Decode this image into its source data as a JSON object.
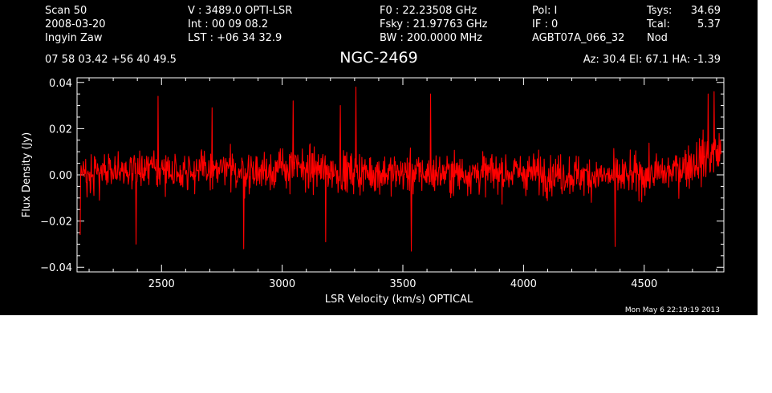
{
  "header": {
    "col1": [
      "Scan          50",
      "2008-03-20",
      "Ingyin Zaw"
    ],
    "col2": [
      "V    :     3489.0 OPTI-LSR",
      "Int   :   00 09 08.2",
      "LST : +06 34 32.9"
    ],
    "col3": [
      "F0    :   22.23508 GHz",
      "Fsky :   21.97763 GHz",
      "BW    : 200.0000 MHz"
    ],
    "col4": [
      "Pol:      I",
      "IF  :      0",
      "AGBT07A_066_32"
    ],
    "col5_labels": [
      "Tsys:",
      "Tcal:",
      "Nod"
    ],
    "col5_values": [
      "34.69",
      "5.37",
      ""
    ],
    "coords": "07 58 03.42  +56 40 49.5",
    "source": "NGC-2469",
    "pointing": "Az:  30.4   El:  67.1   HA: -1.39",
    "timestamp": "Mon May  6 22:19:19 2013"
  },
  "chart_data": {
    "type": "line",
    "title": "NGC-2469",
    "xlabel": "LSR Velocity (km/s) OPTICAL",
    "ylabel": "Flux Density (Jy)",
    "xlim": [
      2150,
      4830
    ],
    "ylim": [
      -0.042,
      0.042
    ],
    "xticks": [
      2500,
      3000,
      3500,
      4000,
      4500
    ],
    "xtick_labels": [
      "2500",
      "3000",
      "3500",
      "4000",
      "4500"
    ],
    "yticks": [
      0.04,
      0.02,
      0.0,
      -0.02,
      -0.04
    ],
    "ytick_labels": [
      "0.04",
      "0.02",
      "0.00",
      "−0.02",
      "−0.04"
    ],
    "series": [
      {
        "color": "#ff0000",
        "x_start": 2163,
        "x_end": 4818,
        "n_points": 1400,
        "noise_rms": 0.0078,
        "baseline": [
          [
            2163,
            0.001
          ],
          [
            2300,
            0.002
          ],
          [
            2600,
            0.002
          ],
          [
            2900,
            0.0015
          ],
          [
            3050,
            0.003
          ],
          [
            3300,
            0.001
          ],
          [
            3600,
            0.0005
          ],
          [
            4000,
            0.001
          ],
          [
            4400,
            -0.001
          ],
          [
            4600,
            0.001
          ],
          [
            4818,
            0.01
          ]
        ],
        "peaks": [
          {
            "x": 3305,
            "y": 0.038
          },
          {
            "x": 2485,
            "y": 0.034
          },
          {
            "x": 3615,
            "y": 0.035
          },
          {
            "x": 4790,
            "y": 0.036
          },
          {
            "x": 4765,
            "y": 0.035
          },
          {
            "x": 3240,
            "y": 0.03
          },
          {
            "x": 3045,
            "y": 0.032
          },
          {
            "x": 2710,
            "y": 0.029
          }
        ],
        "troughs": [
          {
            "x": 2840,
            "y": -0.032
          },
          {
            "x": 3535,
            "y": -0.033
          },
          {
            "x": 4380,
            "y": -0.031
          },
          {
            "x": 2163,
            "y": -0.026
          },
          {
            "x": 2395,
            "y": -0.03
          },
          {
            "x": 3180,
            "y": -0.029
          }
        ]
      }
    ]
  }
}
